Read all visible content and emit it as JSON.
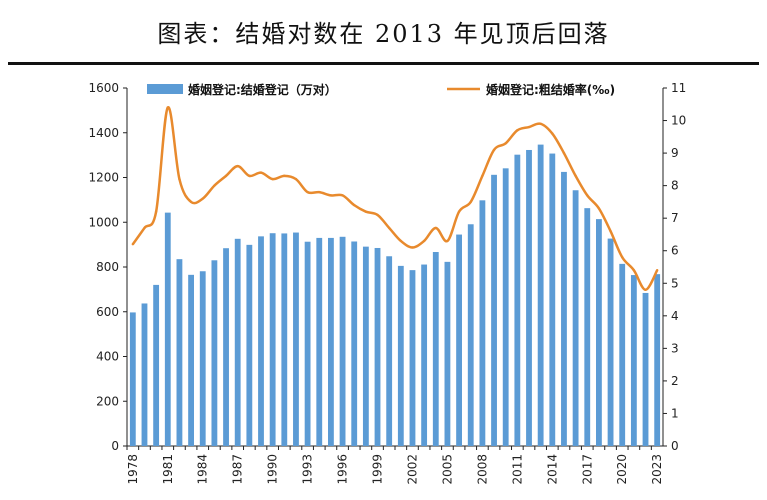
{
  "title": "图表：结婚对数在 2013 年见顶后回落",
  "chart_data": {
    "type": "bar",
    "years": [
      1978,
      1979,
      1980,
      1981,
      1982,
      1983,
      1984,
      1985,
      1986,
      1987,
      1988,
      1989,
      1990,
      1991,
      1992,
      1993,
      1994,
      1995,
      1996,
      1997,
      1998,
      1999,
      2000,
      2001,
      2002,
      2003,
      2004,
      2005,
      2006,
      2007,
      2008,
      2009,
      2010,
      2011,
      2012,
      2013,
      2014,
      2015,
      2016,
      2017,
      2018,
      2019,
      2020,
      2021,
      2022,
      2023
    ],
    "x_tick_labels": [
      "1978",
      "1981",
      "1984",
      "1987",
      "1990",
      "1993",
      "1996",
      "1999",
      "2002",
      "2005",
      "2008",
      "2011",
      "2014",
      "2017",
      "2020",
      "2023"
    ],
    "series": [
      {
        "name": "婚姻登记:结婚登记（万对）",
        "type": "bar",
        "axis": "left",
        "color": "#5b9bd5",
        "values": [
          597,
          637,
          720,
          1043,
          835,
          765,
          781,
          830,
          884,
          926,
          899,
          937,
          951,
          950,
          954,
          913,
          930,
          930,
          935,
          914,
          891,
          885,
          848,
          805,
          786,
          811,
          867,
          823,
          945,
          991,
          1098,
          1212,
          1241,
          1302,
          1323,
          1347,
          1307,
          1225,
          1143,
          1063,
          1014,
          927,
          814,
          764,
          684,
          768
        ]
      },
      {
        "name": "婚姻登记:粗结婚率(‰)",
        "type": "line",
        "axis": "right",
        "color": "#e88a2d",
        "values": [
          6.2,
          6.7,
          7.2,
          10.4,
          8.2,
          7.5,
          7.6,
          8.0,
          8.3,
          8.6,
          8.3,
          8.4,
          8.2,
          8.3,
          8.2,
          7.8,
          7.8,
          7.7,
          7.7,
          7.4,
          7.2,
          7.1,
          6.7,
          6.3,
          6.1,
          6.3,
          6.7,
          6.3,
          7.2,
          7.5,
          8.3,
          9.1,
          9.3,
          9.7,
          9.8,
          9.9,
          9.6,
          9.0,
          8.3,
          7.7,
          7.3,
          6.6,
          5.8,
          5.4,
          4.8,
          5.4
        ]
      }
    ],
    "y_left": {
      "min": 0,
      "max": 1600,
      "ticks": [
        "0",
        "200",
        "400",
        "600",
        "800",
        "1000",
        "1200",
        "1400",
        "1600"
      ]
    },
    "y_right": {
      "min": 0,
      "max": 11,
      "ticks": [
        "0",
        "1",
        "2",
        "3",
        "4",
        "5",
        "6",
        "7",
        "8",
        "9",
        "10",
        "11"
      ]
    },
    "legend_position": "top",
    "grid": false
  }
}
